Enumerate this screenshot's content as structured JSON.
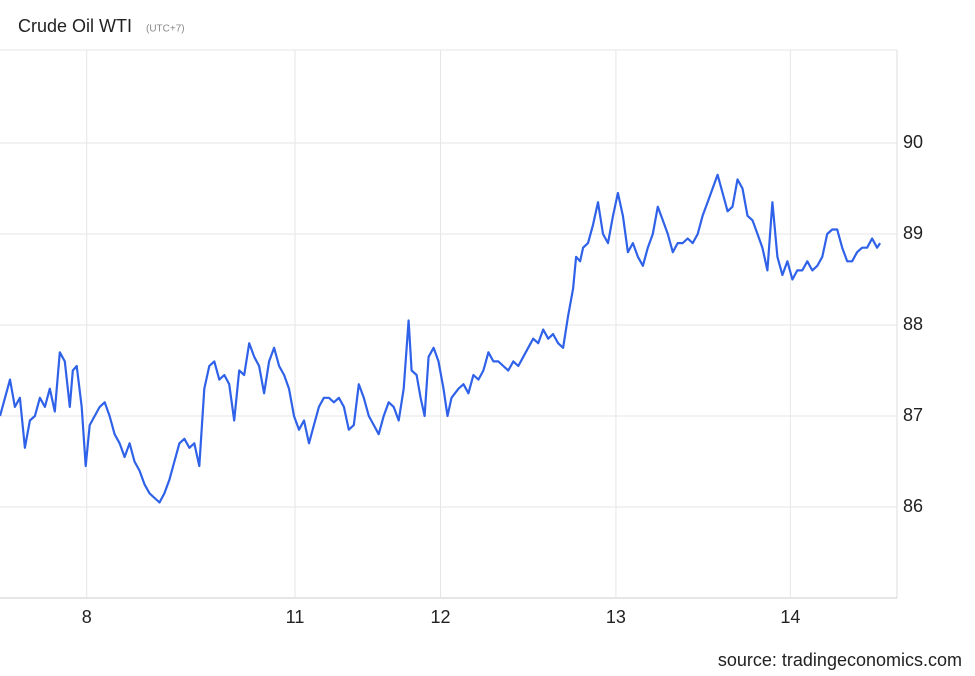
{
  "chart_data": {
    "type": "line",
    "title": "Crude Oil WTI",
    "subtitle": "(UTC+7)",
    "source": "source: tradingeconomics.com",
    "x": [
      0,
      5,
      10,
      15,
      20,
      25,
      30,
      35,
      40,
      45,
      50,
      55,
      60,
      65,
      70,
      73,
      77,
      82,
      86,
      90,
      95,
      100,
      105,
      110,
      115,
      120,
      125,
      130,
      135,
      140,
      145,
      150,
      160,
      165,
      170,
      175,
      180,
      185,
      190,
      195,
      200,
      205,
      210,
      215,
      220,
      225,
      230,
      235,
      240,
      245,
      250,
      255,
      260,
      265,
      270,
      275,
      280,
      285,
      290,
      295,
      300,
      305,
      310,
      315,
      320,
      325,
      330,
      335,
      340,
      345,
      350,
      355,
      360,
      365,
      370,
      375,
      380,
      385,
      390,
      395,
      400,
      405,
      410,
      413,
      418,
      422,
      426,
      430,
      435,
      440,
      445,
      449,
      453,
      460,
      465,
      470,
      475,
      480,
      485,
      490,
      495,
      500,
      505,
      510,
      515,
      520,
      525,
      530,
      535,
      540,
      545,
      550,
      555,
      560,
      565,
      570,
      575,
      578,
      582,
      585,
      590,
      595,
      600,
      605,
      610,
      615,
      620,
      625,
      630,
      635,
      640,
      645,
      650,
      655,
      660,
      665,
      670,
      675,
      680,
      685,
      690,
      695,
      700,
      705,
      710,
      715,
      720,
      725,
      730,
      735,
      740,
      745,
      750,
      755,
      760,
      765,
      770,
      775,
      780,
      785,
      790,
      795,
      800,
      805,
      810,
      815,
      820,
      825,
      830,
      835,
      840,
      845,
      850,
      855,
      860,
      865,
      870,
      875,
      880,
      883
    ],
    "series": [
      {
        "name": "Crude Oil WTI",
        "color": "#2f62e8",
        "values": [
          87.0,
          87.2,
          87.4,
          87.1,
          87.2,
          86.65,
          86.95,
          87.0,
          87.2,
          87.1,
          87.3,
          87.05,
          87.7,
          87.6,
          87.1,
          87.5,
          87.55,
          87.1,
          86.45,
          86.9,
          87.0,
          87.1,
          87.15,
          87.0,
          86.8,
          86.7,
          86.55,
          86.7,
          86.5,
          86.4,
          86.25,
          86.15,
          86.05,
          86.15,
          86.3,
          86.5,
          86.7,
          86.75,
          86.65,
          86.7,
          86.45,
          87.3,
          87.55,
          87.6,
          87.4,
          87.45,
          87.35,
          86.95,
          87.5,
          87.45,
          87.8,
          87.65,
          87.55,
          87.25,
          87.6,
          87.75,
          87.55,
          87.45,
          87.3,
          87.0,
          86.85,
          86.95,
          86.7,
          86.9,
          87.1,
          87.2,
          87.2,
          87.15,
          87.2,
          87.1,
          86.85,
          86.9,
          87.35,
          87.2,
          87.0,
          86.9,
          86.8,
          87.0,
          87.15,
          87.1,
          86.95,
          87.3,
          88.05,
          87.5,
          87.45,
          87.2,
          87.0,
          87.65,
          87.75,
          87.6,
          87.3,
          87.0,
          87.2,
          87.3,
          87.35,
          87.25,
          87.45,
          87.4,
          87.5,
          87.7,
          87.6,
          87.6,
          87.55,
          87.5,
          87.6,
          87.55,
          87.65,
          87.75,
          87.85,
          87.8,
          87.95,
          87.85,
          87.9,
          87.8,
          87.75,
          88.1,
          88.4,
          88.75,
          88.7,
          88.85,
          88.9,
          89.1,
          89.35,
          89.0,
          88.9,
          89.2,
          89.45,
          89.2,
          88.8,
          88.9,
          88.75,
          88.65,
          88.85,
          89.0,
          89.3,
          89.15,
          89.0,
          88.8,
          88.9,
          88.9,
          88.95,
          88.9,
          89.0,
          89.2,
          89.35,
          89.5,
          89.65,
          89.45,
          89.25,
          89.3,
          89.6,
          89.5,
          89.2,
          89.15,
          89.0,
          88.85,
          88.6,
          89.35,
          88.75,
          88.55,
          88.7,
          88.5,
          88.6,
          88.6,
          88.7,
          88.6,
          88.65,
          88.75,
          89.0,
          89.05,
          89.05,
          88.85,
          88.7,
          88.7,
          88.8,
          88.85,
          88.85,
          88.95,
          88.85,
          88.9
        ]
      }
    ],
    "xlim": [
      0,
      900
    ],
    "xticks": [
      {
        "value": 87,
        "label": "8"
      },
      {
        "value": 296,
        "label": "11"
      },
      {
        "value": 442,
        "label": "12"
      },
      {
        "value": 618,
        "label": "13"
      },
      {
        "value": 793,
        "label": "14"
      }
    ],
    "ylim": [
      85,
      91
    ],
    "yticks": [
      86,
      87,
      88,
      89,
      90
    ],
    "grid": true
  }
}
